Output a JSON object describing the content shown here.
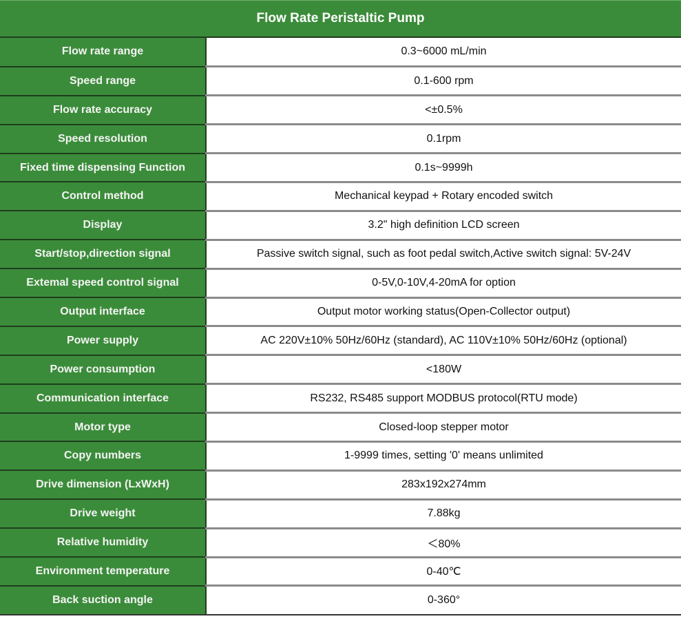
{
  "title": "Flow Rate Peristaltic Pump",
  "colors": {
    "header_green": "#3b8c3a",
    "value_bg": "#ffffff"
  },
  "rows": [
    {
      "label": "Flow rate range",
      "value": "0.3~6000 mL/min"
    },
    {
      "label": "Speed range",
      "value": "0.1-600 rpm"
    },
    {
      "label": "Flow rate accuracy",
      "value": "<±0.5%"
    },
    {
      "label": "Speed resolution",
      "value": "0.1rpm"
    },
    {
      "label": "Fixed time dispensing Function",
      "value": "0.1s~9999h"
    },
    {
      "label": "Control method",
      "value": "Mechanical keypad + Rotary encoded switch"
    },
    {
      "label": "Display",
      "value": "3.2\" high definition LCD screen"
    },
    {
      "label": "Start/stop,direction signal",
      "value": "Passive switch signal, such as foot pedal switch,Active switch signal: 5V-24V"
    },
    {
      "label": "Extemal speed control signal",
      "value": "0-5V,0-10V,4-20mA for option"
    },
    {
      "label": "Output interface",
      "value": "Output motor working status(Open-Collector output)"
    },
    {
      "label": "Power supply",
      "value": "AC 220V±10% 50Hz/60Hz (standard), AC 110V±10% 50Hz/60Hz (optional)"
    },
    {
      "label": "Power consumption",
      "value": "<180W"
    },
    {
      "label": "Communication interface",
      "value": "RS232, RS485 support MODBUS protocol(RTU mode)"
    },
    {
      "label": "Motor type",
      "value": "Closed-loop stepper motor"
    },
    {
      "label": "Copy numbers",
      "value": "1-9999 times, setting '0' means unlimited"
    },
    {
      "label": "Drive dimension (LxWxH)",
      "value": "283x192x274mm"
    },
    {
      "label": "Drive weight",
      "value": "7.88kg"
    },
    {
      "label": "Relative humidity",
      "value": "＜80%"
    },
    {
      "label": "Environment temperature",
      "value": "0-40℃"
    },
    {
      "label": "Back suction angle",
      "value": "0-360°"
    }
  ]
}
